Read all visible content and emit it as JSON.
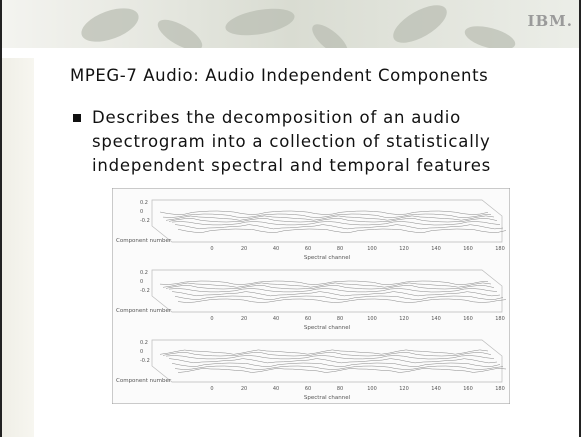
{
  "header": {
    "logo": "IBM."
  },
  "slide": {
    "title": "MPEG-7 Audio: Audio Independent Components",
    "bullets": [
      "Describes the decomposition of an audio spectrogram into a collection of statistically independent spectral and temporal features"
    ]
  },
  "figure": {
    "panels": [
      {
        "y_label": "Component number",
        "x_label": "Spectral channel"
      },
      {
        "y_label": "Component number",
        "x_label": "Spectral channel"
      },
      {
        "y_label": "Component number",
        "x_label": "Spectral channel"
      }
    ],
    "x_ticks": [
      "0",
      "20",
      "40",
      "60",
      "80",
      "100",
      "120",
      "140",
      "160",
      "180"
    ],
    "z_ticks": [
      "0.2",
      "0",
      "-0.2"
    ]
  }
}
